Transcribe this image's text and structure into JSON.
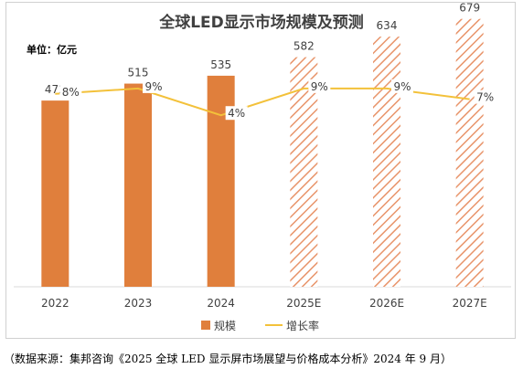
{
  "source_note": "（数据来源：集邦咨询《2025 全球 LED 显示屏市场展望与价格成本分析》2024 年 9 月）",
  "colors": {
    "bar": "#E07F3C",
    "line": "#F3C13A",
    "hatch_stroke": "#E8946A",
    "axis": "#d9d9d9",
    "text": "#404040"
  },
  "chart_data": {
    "type": "bar",
    "title": "全球LED显示市场规模及预测",
    "unit_label": "单位：亿元",
    "categories": [
      "2022",
      "2023",
      "2024",
      "2025E",
      "2026E",
      "2027E"
    ],
    "forecast_from_index": 3,
    "ylim": [
      0,
      720
    ],
    "y2lim": [
      -28,
      25
    ],
    "series": [
      {
        "name": "规模",
        "type": "bar",
        "values": [
          472,
          515,
          535,
          582,
          634,
          679
        ],
        "labels": [
          "472",
          "515",
          "535",
          "582",
          "634",
          "679"
        ]
      },
      {
        "name": "增长率",
        "type": "line",
        "values": [
          8,
          9,
          4,
          9,
          9,
          7
        ],
        "labels": [
          "8%",
          "9%",
          "4%",
          "9%",
          "9%",
          "7%"
        ]
      }
    ],
    "legend": "bottom-center",
    "grid": false
  }
}
